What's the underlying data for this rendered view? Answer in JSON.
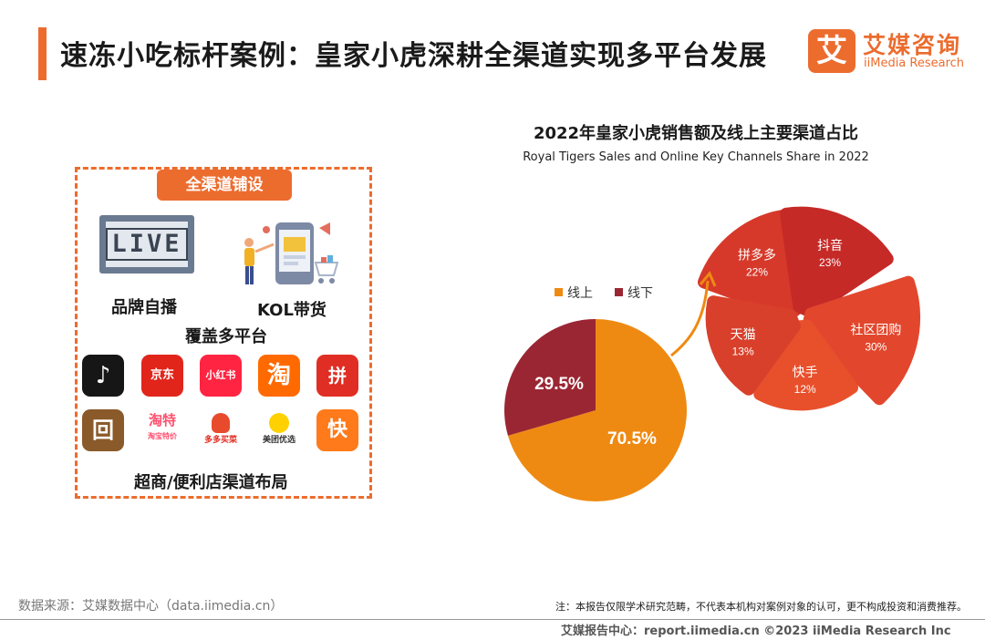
{
  "header": {
    "title": "速冻小吃标杆案例：皇家小虎深耕全渠道实现多平台发展",
    "logo_box": "艾",
    "logo_cn": "艾媒咨询",
    "logo_en": "iiMedia Research"
  },
  "channels": {
    "tag": "全渠道铺设",
    "tv_text": "LIVE",
    "brand_live": "品牌自播",
    "kol": "KOL带货",
    "platforms_label": "覆盖多平台",
    "offline_label": "超商/便利店渠道布局",
    "apps": [
      {
        "name": "douyin",
        "text": "♪",
        "color": "#161616"
      },
      {
        "name": "jd",
        "text": "京东",
        "color": "#e1251b"
      },
      {
        "name": "xiaohongshu",
        "text": "小红书",
        "color": "#ff2442"
      },
      {
        "name": "taobao",
        "text": "淘",
        "color": "#ff6a00"
      },
      {
        "name": "pinduoduo",
        "text": "拼",
        "color": "#e02e24"
      },
      {
        "name": "dewu",
        "text": "回",
        "color": "#8a5a2b"
      },
      {
        "name": "taote",
        "text": "淘特",
        "color": "#ff4f6e"
      },
      {
        "name": "duoduomaicai",
        "text": "多多买菜",
        "color": "#ffffff"
      },
      {
        "name": "meituanyouxuan",
        "text": "美团优选",
        "color": "#ffffff"
      },
      {
        "name": "kuaishou",
        "text": "快",
        "color": "#ff7a1a"
      }
    ],
    "app_sublabels": {
      "taote": "淘宝特价"
    }
  },
  "chart_data": [
    {
      "type": "pie",
      "title": "2022年皇家小虎销售额及线上主要渠道占比",
      "subtitle": "Royal Tigers Sales and Online Key Channels Share in 2022",
      "legend": [
        "线上",
        "线下"
      ],
      "legend_position": "left",
      "slices": [
        {
          "name": "线上",
          "value": 70.5,
          "label": "70.5%",
          "color": "#ee8a12"
        },
        {
          "name": "线下",
          "value": 29.5,
          "label": "29.5%",
          "color": "#9b2633"
        }
      ]
    },
    {
      "type": "pie",
      "style": "petal",
      "slices": [
        {
          "name": "拼多多",
          "value": 22,
          "label": "22%",
          "color": "#d6392a"
        },
        {
          "name": "抖音",
          "value": 23,
          "label": "23%",
          "color": "#c52a27"
        },
        {
          "name": "社区团购",
          "value": 30,
          "label": "30%",
          "color": "#e2472d"
        },
        {
          "name": "快手",
          "value": 12,
          "label": "12%",
          "color": "#e8502c"
        },
        {
          "name": "天猫",
          "value": 13,
          "label": "13%",
          "color": "#d8402b"
        }
      ]
    }
  ],
  "footer": {
    "source": "数据来源：艾媒数据中心（data.iimedia.cn）",
    "note": "注：本报告仅限学术研究范畴，不代表本机构对案例对象的认可，更不构成投资和消费推荐。",
    "copyright": "艾媒报告中心：report.iimedia.cn  ©2023  iiMedia Research  Inc"
  }
}
